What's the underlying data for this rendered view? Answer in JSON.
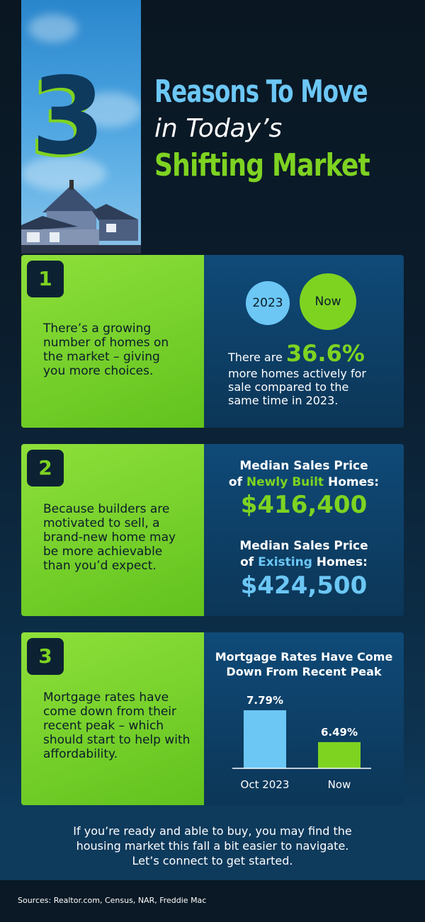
{
  "header": {
    "number": "3",
    "line1": "Reasons To Move",
    "line2": "in Today’s",
    "line3": "Shifting Market"
  },
  "reasons": [
    {
      "number": "1",
      "text": "There’s a growing number of homes on the market – giving you more choices.",
      "circle_left": "2023",
      "circle_right": "Now",
      "stat_prefix": "There are",
      "stat": "36.6%",
      "stat_suffix": "more homes actively for sale compared to the same time in 2023."
    },
    {
      "number": "2",
      "text": "Because builders are motivated to sell, a brand-new home may be more achievable than you’d expect.",
      "new_label_a": "Median Sales Price",
      "new_label_b1": "of ",
      "new_label_hl": "Newly Built",
      "new_label_b2": " Homes:",
      "new_price": "$416,400",
      "ex_label_a": "Median Sales Price",
      "ex_label_b1": "of ",
      "ex_label_hl": "Existing",
      "ex_label_b2": " Homes:",
      "ex_price": "$424,500"
    },
    {
      "number": "3",
      "text": "Mortgage rates have come down from their recent peak – which should start to help with affordability."
    }
  ],
  "chart_data": {
    "type": "bar",
    "title": "Mortgage Rates Have Come Down From Recent Peak",
    "categories": [
      "Oct 2023",
      "Now"
    ],
    "values": [
      7.79,
      6.49
    ],
    "labels": [
      "7.79%",
      "6.49%"
    ],
    "colors": [
      "#6cc7f5",
      "#7ed321"
    ],
    "ylim": [
      5.42,
      7.79
    ],
    "grid": false
  },
  "footer": "If you’re ready and able to buy, you may find the housing market this fall a bit easier to navigate. Let’s connect to get started.",
  "sources": "Sources: Realtor.com, Census, NAR, Freddie Mac",
  "colors": {
    "green": "#7ed321",
    "light_blue": "#6cc7f5",
    "navy": "#0a1722"
  }
}
